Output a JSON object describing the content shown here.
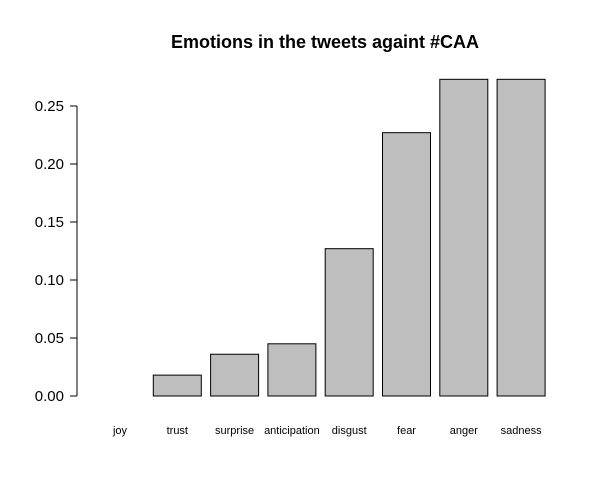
{
  "chart_data": {
    "type": "bar",
    "title": "Emotions in the tweets againt #CAA",
    "xlabel": "",
    "ylabel": "",
    "categories": [
      "joy",
      "trust",
      "surprise",
      "anticipation",
      "disgust",
      "fear",
      "anger",
      "sadness"
    ],
    "values": [
      0.0,
      0.018,
      0.036,
      0.045,
      0.127,
      0.227,
      0.273,
      0.273
    ],
    "ylim": [
      0,
      0.25
    ],
    "yticks": [
      "0.00",
      "0.05",
      "0.10",
      "0.15",
      "0.20",
      "0.25"
    ],
    "grid": false,
    "legend": "none",
    "colors": {
      "bar_fill": "#bebebe",
      "bar_stroke": "#000000"
    }
  }
}
